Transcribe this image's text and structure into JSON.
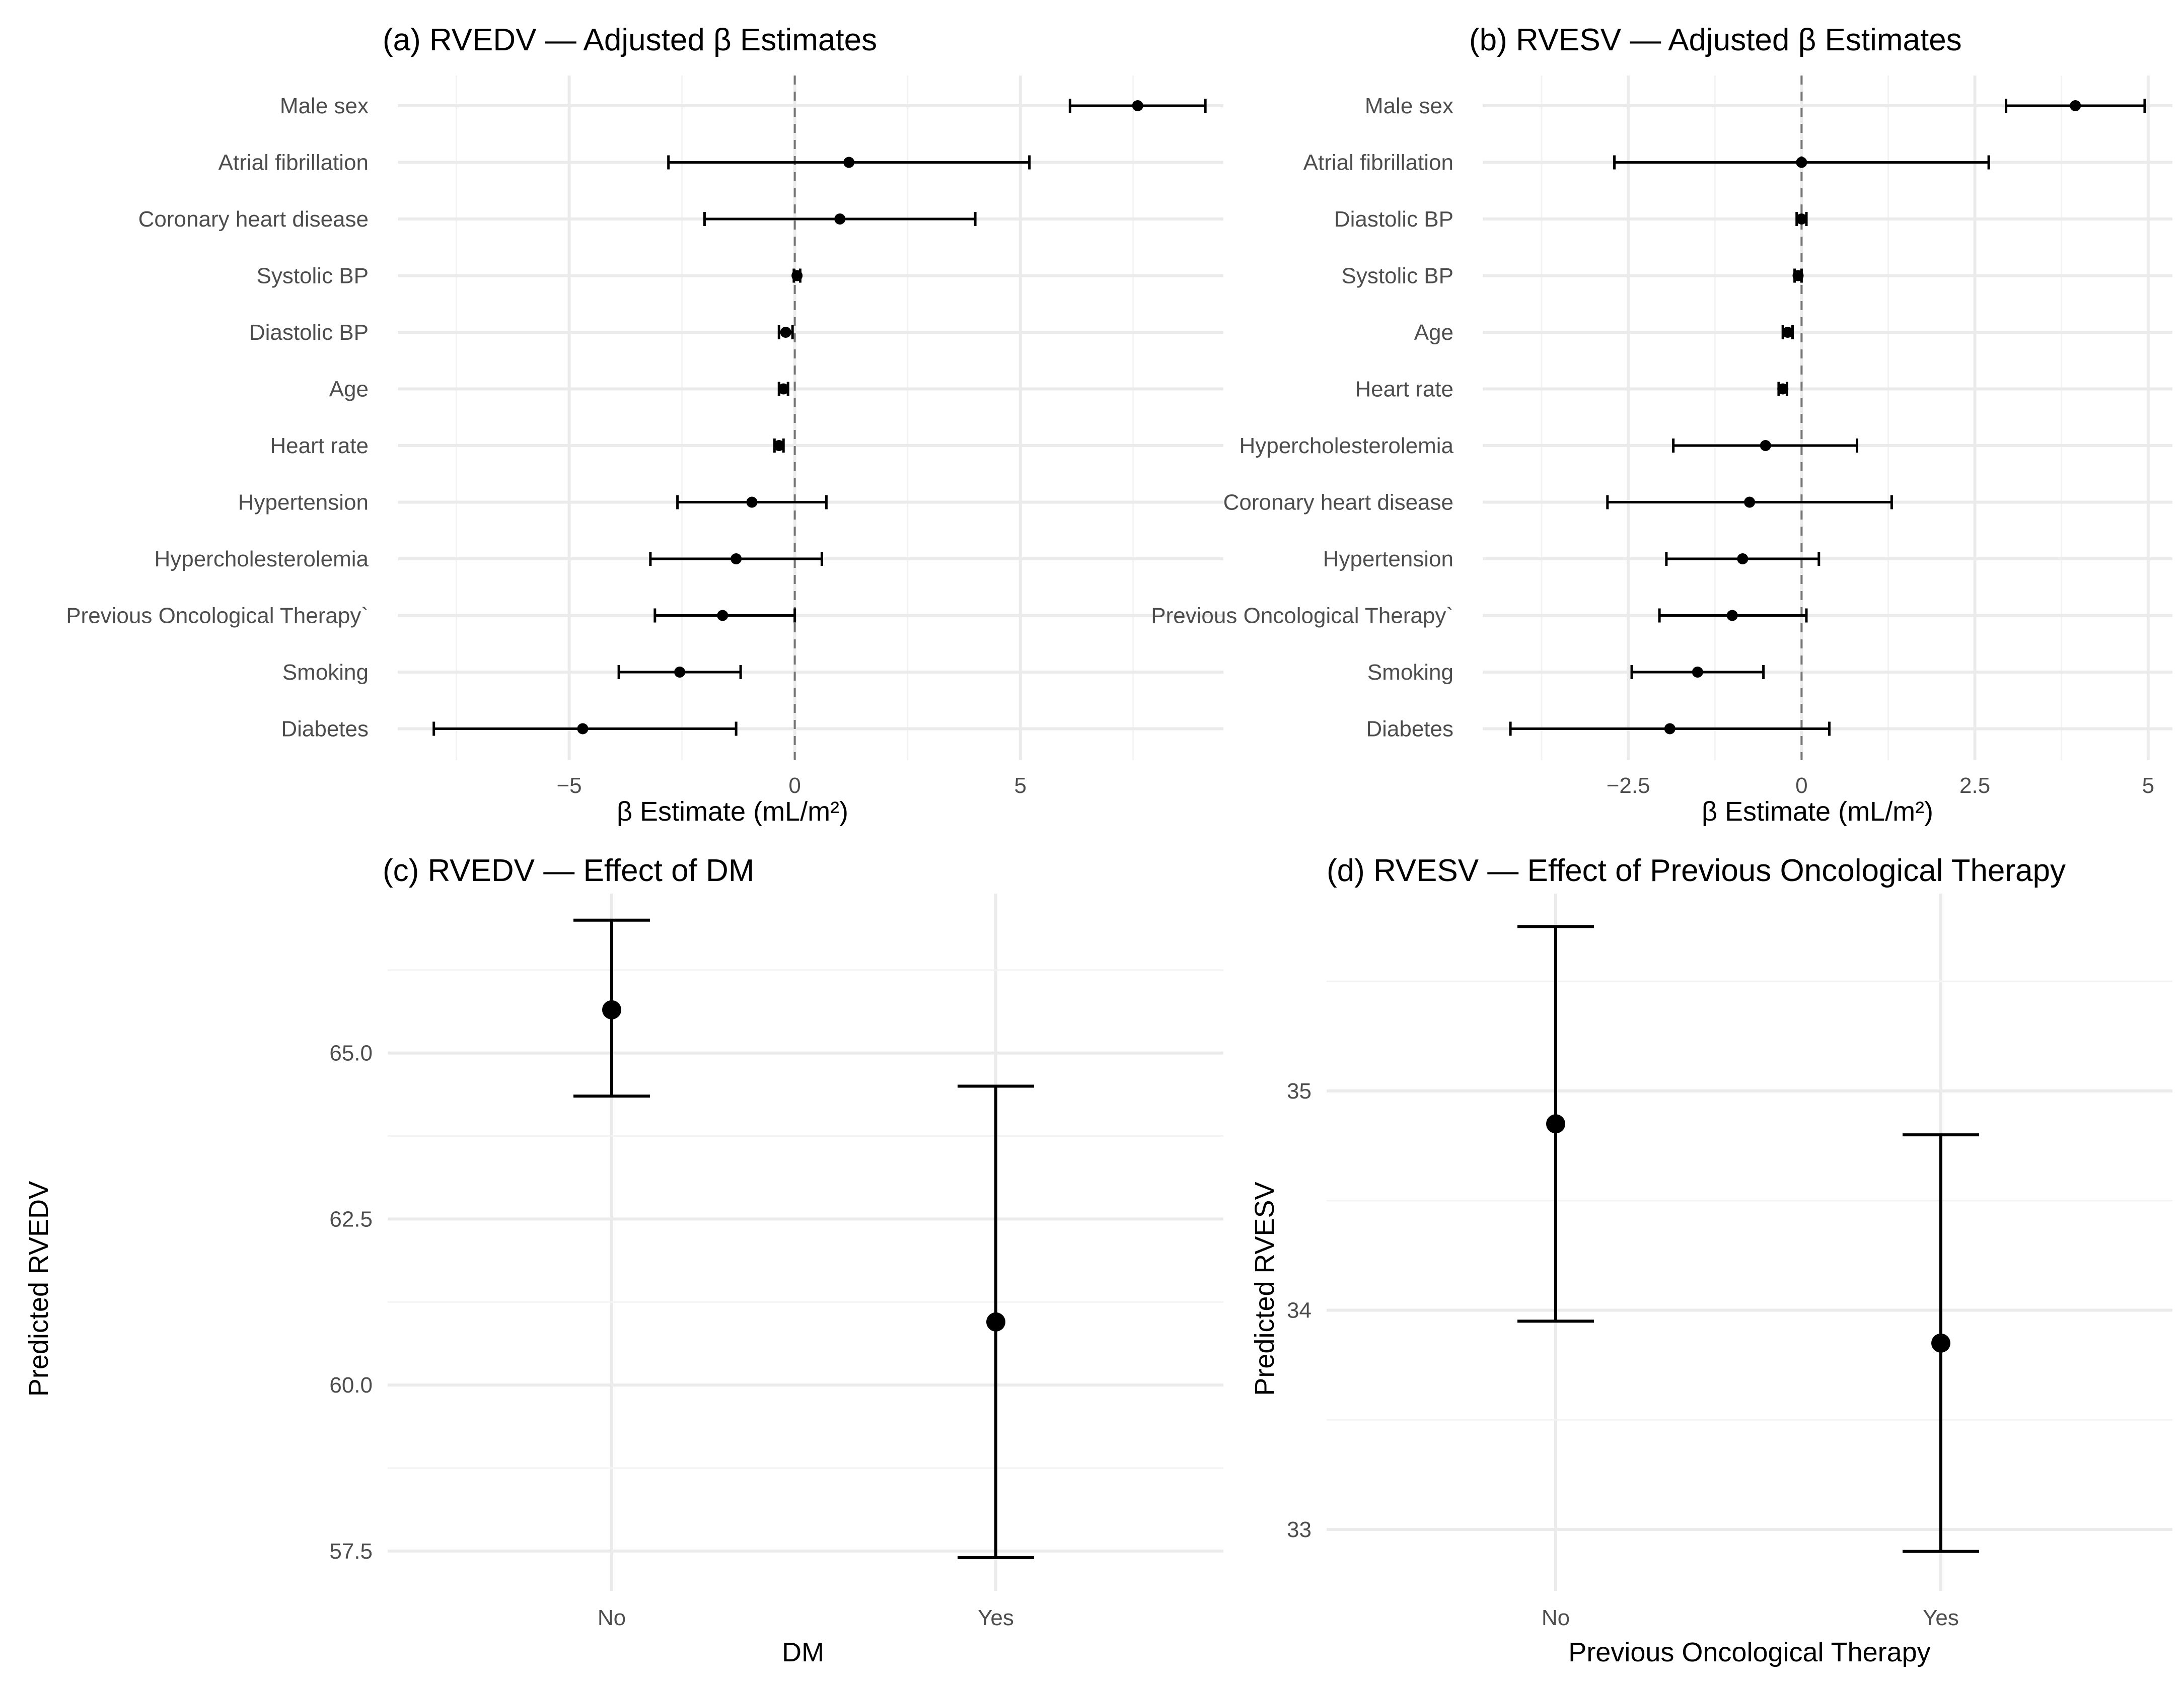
{
  "chart_data": [
    {
      "type": "forest",
      "panel": "a",
      "title": "(a) RVEDV — Adjusted β Estimates",
      "xlabel": "β Estimate (mL/m²)",
      "ylabel": "",
      "xlim": [
        -8.8,
        9.5
      ],
      "xticks": [
        {
          "v": -5,
          "label": "−5"
        },
        {
          "v": 0,
          "label": "0"
        },
        {
          "v": 5,
          "label": "5"
        }
      ],
      "xminor": [
        -7.5,
        -2.5,
        2.5,
        7.5
      ],
      "reference_line": 0,
      "terms": [
        {
          "label": "Male sex",
          "est": 7.6,
          "lo": 6.1,
          "hi": 9.1
        },
        {
          "label": "Atrial fibrillation",
          "est": 1.2,
          "lo": -2.8,
          "hi": 5.2
        },
        {
          "label": "Coronary heart disease",
          "est": 1.0,
          "lo": -2.0,
          "hi": 4.0
        },
        {
          "label": "Systolic BP",
          "est": 0.05,
          "lo": -0.02,
          "hi": 0.12
        },
        {
          "label": "Diastolic BP",
          "est": -0.2,
          "lo": -0.35,
          "hi": -0.05
        },
        {
          "label": "Age",
          "est": -0.25,
          "lo": -0.35,
          "hi": -0.15
        },
        {
          "label": "Heart rate",
          "est": -0.35,
          "lo": -0.45,
          "hi": -0.25
        },
        {
          "label": "Hypertension",
          "est": -0.95,
          "lo": -2.6,
          "hi": 0.7
        },
        {
          "label": "Hypercholesterolemia",
          "est": -1.3,
          "lo": -3.2,
          "hi": 0.6
        },
        {
          "label": "Previous Oncological Therapy`",
          "est": -1.6,
          "lo": -3.1,
          "hi": 0.0
        },
        {
          "label": "Smoking",
          "est": -2.55,
          "lo": -3.9,
          "hi": -1.2
        },
        {
          "label": "Diabetes",
          "est": -4.7,
          "lo": -8.0,
          "hi": -1.3
        }
      ]
    },
    {
      "type": "forest",
      "panel": "b",
      "title": "(b) RVESV — Adjusted β Estimates",
      "xlabel": "β Estimate (mL/m²)",
      "ylabel": "",
      "xlim": [
        -4.6,
        5.35
      ],
      "xticks": [
        {
          "v": -2.5,
          "label": "−2.5"
        },
        {
          "v": 0,
          "label": "0"
        },
        {
          "v": 2.5,
          "label": "2.5"
        },
        {
          "v": 5,
          "label": "5"
        }
      ],
      "xminor": [
        -3.75,
        -1.25,
        1.25,
        3.75
      ],
      "reference_line": 0,
      "terms": [
        {
          "label": "Male sex",
          "est": 3.95,
          "lo": 2.95,
          "hi": 4.95
        },
        {
          "label": "Atrial fibrillation",
          "est": 0.0,
          "lo": -2.7,
          "hi": 2.7
        },
        {
          "label": "Diastolic BP",
          "est": 0.0,
          "lo": -0.07,
          "hi": 0.07
        },
        {
          "label": "Systolic BP",
          "est": -0.05,
          "lo": -0.1,
          "hi": 0.0
        },
        {
          "label": "Age",
          "est": -0.2,
          "lo": -0.27,
          "hi": -0.13
        },
        {
          "label": "Heart rate",
          "est": -0.27,
          "lo": -0.33,
          "hi": -0.21
        },
        {
          "label": "Hypercholesterolemia",
          "est": -0.52,
          "lo": -1.85,
          "hi": 0.8
        },
        {
          "label": "Coronary heart disease",
          "est": -0.75,
          "lo": -2.8,
          "hi": 1.3
        },
        {
          "label": "Hypertension",
          "est": -0.85,
          "lo": -1.95,
          "hi": 0.25
        },
        {
          "label": "Previous Oncological Therapy`",
          "est": -1.0,
          "lo": -2.05,
          "hi": 0.07
        },
        {
          "label": "Smoking",
          "est": -1.5,
          "lo": -2.45,
          "hi": -0.55
        },
        {
          "label": "Diabetes",
          "est": -1.9,
          "lo": -4.2,
          "hi": 0.4
        }
      ]
    },
    {
      "type": "errorbar",
      "panel": "c",
      "title": "(c) RVEDV — Effect of DM",
      "xlabel": "DM",
      "ylabel": "Predicted RVEDV",
      "ylim": [
        56.9,
        67.4
      ],
      "yticks": [
        {
          "v": 57.5,
          "label": "57.5"
        },
        {
          "v": 60,
          "label": "60.0"
        },
        {
          "v": 62.5,
          "label": "62.5"
        },
        {
          "v": 65,
          "label": "65.0"
        }
      ],
      "yminor": [
        58.75,
        61.25,
        63.75,
        66.25
      ],
      "categories": [
        "No",
        "Yes"
      ],
      "points": [
        {
          "category": "No",
          "est": 65.65,
          "lo": 64.35,
          "hi": 67.0
        },
        {
          "category": "Yes",
          "est": 60.95,
          "lo": 57.4,
          "hi": 64.5
        }
      ]
    },
    {
      "type": "errorbar",
      "panel": "d",
      "title": "(d) RVESV — Effect of Previous Oncological Therapy",
      "xlabel": "Previous Oncological Therapy",
      "ylabel": "Predicted RVESV",
      "ylim": [
        32.72,
        35.9
      ],
      "yticks": [
        {
          "v": 33,
          "label": "33"
        },
        {
          "v": 34,
          "label": "34"
        },
        {
          "v": 35,
          "label": "35"
        }
      ],
      "yminor": [
        33.5,
        34.5,
        35.5
      ],
      "categories": [
        "No",
        "Yes"
      ],
      "points": [
        {
          "category": "No",
          "est": 34.85,
          "lo": 33.95,
          "hi": 35.75
        },
        {
          "category": "Yes",
          "est": 33.85,
          "lo": 32.9,
          "hi": 34.8
        }
      ]
    }
  ]
}
